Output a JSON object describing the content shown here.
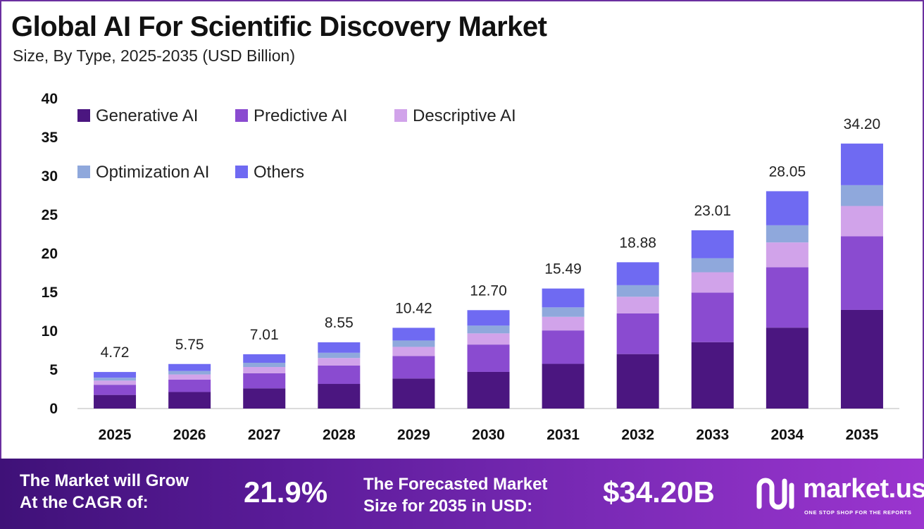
{
  "header": {
    "title": "Global AI For Scientific Discovery Market",
    "subtitle": "Size, By Type, 2025-2035 (USD Billion)"
  },
  "chart_data": {
    "type": "bar",
    "stacked": true,
    "categories": [
      "2025",
      "2026",
      "2027",
      "2028",
      "2029",
      "2030",
      "2031",
      "2032",
      "2033",
      "2034",
      "2035"
    ],
    "totals": [
      4.72,
      5.75,
      7.01,
      8.55,
      10.42,
      12.7,
      15.49,
      18.88,
      23.01,
      28.05,
      34.2
    ],
    "total_labels": [
      "4.72",
      "5.75",
      "7.01",
      "8.55",
      "10.42",
      "12.70",
      "15.49",
      "18.88",
      "23.01",
      "28.05",
      "34.20"
    ],
    "series": [
      {
        "name": "Generative AI",
        "color": "#4b1680",
        "values": [
          1.76,
          2.14,
          2.61,
          3.18,
          3.88,
          4.73,
          5.77,
          7.03,
          8.57,
          10.44,
          12.73
        ]
      },
      {
        "name": "Predictive AI",
        "color": "#8a4bd0",
        "values": [
          1.31,
          1.6,
          1.95,
          2.38,
          2.9,
          3.53,
          4.31,
          5.25,
          6.4,
          7.8,
          9.51
        ]
      },
      {
        "name": "Descriptive AI",
        "color": "#d1a3ea",
        "values": [
          0.54,
          0.66,
          0.8,
          0.97,
          1.18,
          1.44,
          1.76,
          2.15,
          2.62,
          3.2,
          3.9
        ]
      },
      {
        "name": "Optimization AI",
        "color": "#8fa8dc",
        "values": [
          0.37,
          0.45,
          0.55,
          0.67,
          0.82,
          1.0,
          1.22,
          1.49,
          1.81,
          2.21,
          2.69
        ]
      },
      {
        "name": "Others",
        "color": "#6f6af2",
        "values": [
          0.74,
          0.9,
          1.1,
          1.35,
          1.64,
          2.0,
          2.43,
          2.96,
          3.61,
          4.4,
          5.37
        ]
      }
    ],
    "ylim": [
      0,
      40
    ],
    "yticks": [
      0,
      5,
      10,
      15,
      20,
      25,
      30,
      35,
      40
    ],
    "grid": false,
    "legend_position": "top-left"
  },
  "footer": {
    "cagr_label_line1": "The Market will Grow",
    "cagr_label_line2": "At the CAGR of:",
    "cagr_value": "21.9%",
    "forecast_label_line1": "The Forecasted Market",
    "forecast_label_line2": "Size for 2035 in USD:",
    "forecast_value": "$34.20B",
    "brand_name": "market.us",
    "brand_tagline": "ONE STOP SHOP FOR THE REPORTS"
  }
}
